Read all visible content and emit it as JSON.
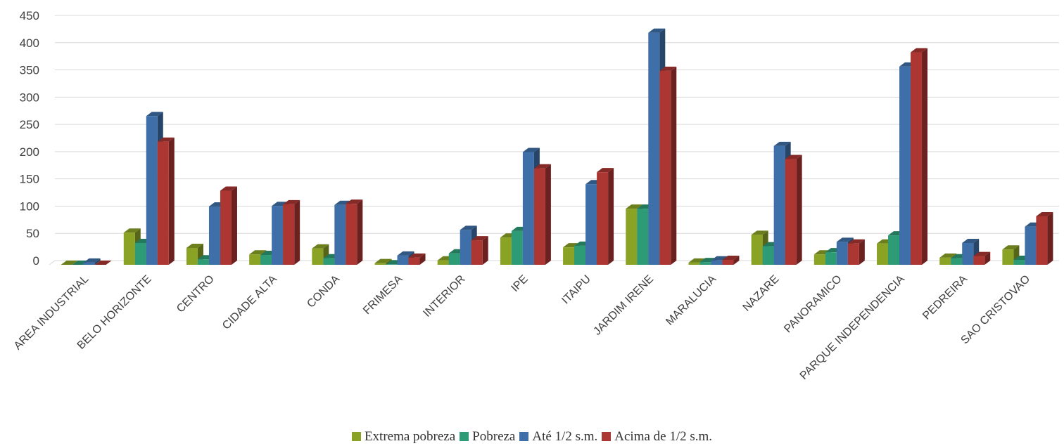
{
  "chart_data": {
    "type": "bar",
    "ylim": [
      0,
      450
    ],
    "yticks": [
      "0",
      "50",
      "100",
      "150",
      "200",
      "250",
      "300",
      "350",
      "400",
      "450"
    ],
    "grid": true,
    "legend_position": "bottom",
    "categories": [
      "AREA INDUSTRIAL",
      "BELO HORIZONTE",
      "CENTRO",
      "CIDADE ALTA",
      "CONDA",
      "FRIMESA",
      "INTERIOR",
      "IPE",
      "ITAIPU",
      "JARDIM IRENE",
      "MARALUCIA",
      "NAZARE",
      "PANORAMICO",
      "PARQUE INDEPENDENCIA",
      "PEDREIRA",
      "SAO CRISTOVAO"
    ],
    "series": [
      {
        "name": "Extrema pobreza",
        "color": "#8BA325",
        "values": [
          0,
          59,
          31,
          19,
          30,
          3,
          8,
          50,
          32,
          103,
          4,
          55,
          19,
          39,
          13,
          28
        ]
      },
      {
        "name": "Pobreza",
        "color": "#2E9B77",
        "values": [
          0,
          40,
          10,
          18,
          12,
          1,
          21,
          62,
          35,
          103,
          5,
          34,
          23,
          54,
          12,
          9
        ]
      },
      {
        "name": "Até 1/2 s.m.",
        "color": "#3F6FA8",
        "values": [
          4,
          273,
          107,
          108,
          110,
          17,
          64,
          207,
          148,
          426,
          8,
          218,
          42,
          364,
          40,
          70
        ]
      },
      {
        "name": "Acima de 1/2 s.m.",
        "color": "#AC3632",
        "values": [
          0,
          226,
          136,
          111,
          112,
          13,
          45,
          177,
          170,
          356,
          9,
          194,
          39,
          390,
          16,
          89
        ]
      }
    ]
  }
}
